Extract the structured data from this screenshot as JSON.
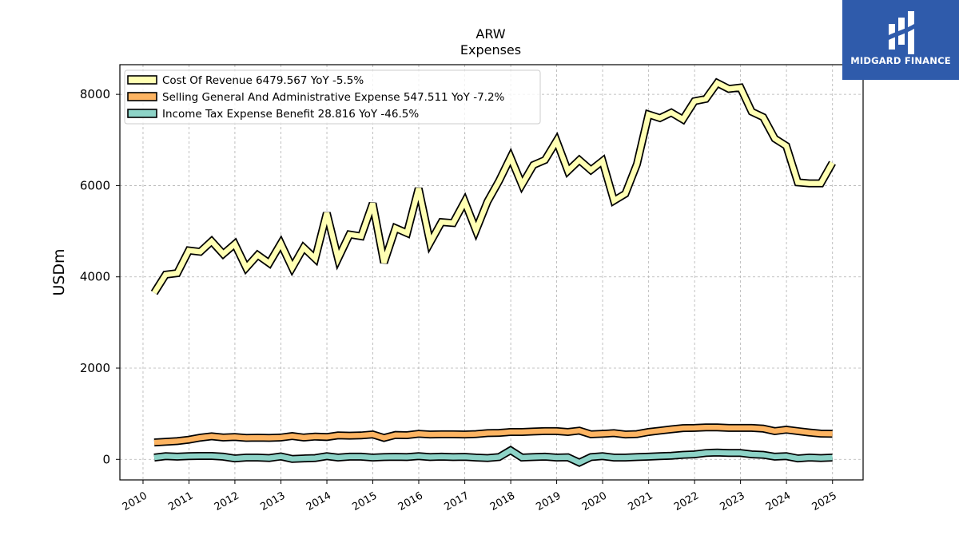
{
  "logo": {
    "text": "MIDGARD FINANCE",
    "bg": "#2f5bab"
  },
  "chart_data": {
    "type": "line",
    "title": "ARW",
    "subtitle": "Expenses",
    "xlabel": "",
    "ylabel": "USDm",
    "xlim": [
      "2009-07-01",
      "2025-09-01"
    ],
    "ylim": [
      -450,
      8650
    ],
    "yticks": [
      0,
      2000,
      4000,
      6000,
      8000
    ],
    "xticks": [
      "2010",
      "2011",
      "2012",
      "2013",
      "2014",
      "2015",
      "2016",
      "2017",
      "2018",
      "2019",
      "2020",
      "2021",
      "2022",
      "2023",
      "2024",
      "2025"
    ],
    "grid": true,
    "legend_position": "top-left",
    "x": [
      "2010-03-31",
      "2010-06-30",
      "2010-09-30",
      "2010-12-31",
      "2011-03-31",
      "2011-06-30",
      "2011-09-30",
      "2011-12-31",
      "2012-03-31",
      "2012-06-30",
      "2012-09-30",
      "2012-12-31",
      "2013-03-31",
      "2013-06-30",
      "2013-09-30",
      "2013-12-31",
      "2014-03-31",
      "2014-06-30",
      "2014-09-30",
      "2014-12-31",
      "2015-03-31",
      "2015-06-30",
      "2015-09-30",
      "2015-12-31",
      "2016-03-31",
      "2016-06-30",
      "2016-09-30",
      "2016-12-31",
      "2017-03-31",
      "2017-06-30",
      "2017-09-30",
      "2017-12-31",
      "2018-03-31",
      "2018-06-30",
      "2018-09-30",
      "2018-12-31",
      "2019-03-31",
      "2019-06-30",
      "2019-09-30",
      "2019-12-31",
      "2020-03-31",
      "2020-06-30",
      "2020-09-30",
      "2020-12-31",
      "2021-03-31",
      "2021-06-30",
      "2021-09-30",
      "2021-12-31",
      "2022-03-31",
      "2022-06-30",
      "2022-09-30",
      "2022-12-31",
      "2023-03-31",
      "2023-06-30",
      "2023-09-30",
      "2023-12-31",
      "2024-03-31",
      "2024-06-30",
      "2024-09-30",
      "2024-12-31"
    ],
    "series": [
      {
        "name": "Cost Of Revenue",
        "legend_label": "Cost Of Revenue  6479.567 YoY -5.5%",
        "color": "#ffffb3",
        "values": [
          3650,
          4050,
          4080,
          4580,
          4550,
          4780,
          4500,
          4720,
          4200,
          4480,
          4300,
          4730,
          4200,
          4640,
          4400,
          5400,
          4400,
          4930,
          4890,
          5610,
          4310,
          5070,
          4960,
          5940,
          4750,
          5200,
          5180,
          5650,
          5020,
          5650,
          6100,
          6620,
          6020,
          6450,
          6560,
          6980,
          6320,
          6560,
          6340,
          6540,
          5670,
          5820,
          6470,
          7560,
          7480,
          7600,
          7450,
          7850,
          7900,
          8250,
          8120,
          8150,
          7620,
          7500,
          7030,
          6870,
          6070,
          6050,
          6050,
          6500
        ]
      },
      {
        "name": "Selling General And Administrative Expense",
        "legend_label": "Selling General And Administrative Expense  547.511 YoY -7.2%",
        "color": "#fdb462",
        "values": [
          370,
          385,
          400,
          430,
          475,
          505,
          480,
          490,
          470,
          475,
          470,
          480,
          510,
          480,
          500,
          490,
          525,
          520,
          525,
          545,
          470,
          535,
          530,
          560,
          545,
          550,
          550,
          545,
          555,
          575,
          580,
          600,
          600,
          610,
          620,
          620,
          600,
          630,
          550,
          560,
          575,
          545,
          555,
          600,
          630,
          660,
          685,
          690,
          700,
          700,
          690,
          690,
          690,
          675,
          620,
          650,
          620,
          590,
          565,
          560
        ]
      },
      {
        "name": "Income Tax Expense Benefit",
        "legend_label": "Income Tax Expense Benefit  28.816 YoY -46.5%",
        "color": "#8dd3c7",
        "values": [
          40,
          70,
          60,
          70,
          75,
          75,
          60,
          20,
          40,
          40,
          30,
          65,
          10,
          20,
          30,
          70,
          40,
          60,
          60,
          40,
          50,
          55,
          50,
          70,
          50,
          60,
          50,
          55,
          40,
          30,
          50,
          200,
          40,
          50,
          60,
          40,
          45,
          -70,
          50,
          70,
          40,
          40,
          50,
          60,
          70,
          80,
          100,
          110,
          140,
          150,
          140,
          140,
          110,
          100,
          60,
          70,
          20,
          40,
          30,
          40
        ]
      }
    ]
  }
}
